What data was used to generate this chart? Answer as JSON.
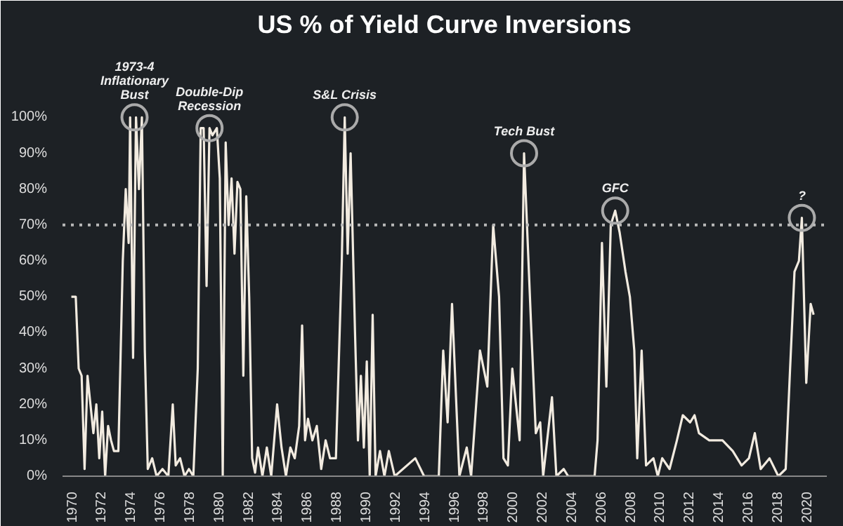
{
  "chart_data": {
    "type": "line",
    "title": "US % of Yield Curve Inversions",
    "color": "#f2ebe0",
    "x": [
      1970.0,
      1970.3,
      1970.5,
      1970.7,
      1970.9,
      1971.1,
      1971.3,
      1971.5,
      1971.7,
      1971.9,
      1972.1,
      1972.3,
      1972.5,
      1972.7,
      1972.9,
      1973.2,
      1973.5,
      1973.7,
      1973.9,
      1974.0,
      1974.2,
      1974.4,
      1974.6,
      1974.8,
      1975.0,
      1975.2,
      1975.5,
      1975.8,
      1976.2,
      1976.6,
      1976.9,
      1977.1,
      1977.4,
      1977.7,
      1978.0,
      1978.3,
      1978.6,
      1978.8,
      1979.0,
      1979.2,
      1979.4,
      1979.6,
      1979.9,
      1980.1,
      1980.3,
      1980.5,
      1980.7,
      1980.9,
      1981.1,
      1981.3,
      1981.5,
      1981.7,
      1981.9,
      1982.1,
      1982.3,
      1982.5,
      1982.7,
      1983.0,
      1983.3,
      1983.6,
      1984.0,
      1984.3,
      1984.6,
      1984.9,
      1985.2,
      1985.5,
      1985.7,
      1985.9,
      1986.1,
      1986.4,
      1986.7,
      1987.0,
      1987.3,
      1987.6,
      1988.0,
      1988.4,
      1988.6,
      1988.8,
      1989.0,
      1989.3,
      1989.5,
      1989.7,
      1989.9,
      1990.1,
      1990.3,
      1990.5,
      1990.7,
      1991.0,
      1991.3,
      1991.6,
      1992.0,
      1993.4,
      1994.0,
      1995.0,
      1995.3,
      1995.6,
      1995.9,
      1996.4,
      1996.9,
      1997.2,
      1997.8,
      1998.3,
      1998.7,
      1999.1,
      1999.4,
      1999.7,
      2000.0,
      2000.5,
      2000.8,
      2001.3,
      2001.6,
      2001.9,
      2002.1,
      2002.7,
      2003.0,
      2003.5,
      2003.8,
      2005.6,
      2005.8,
      2006.1,
      2006.4,
      2006.7,
      2007.0,
      2007.3,
      2007.7,
      2008.0,
      2008.3,
      2008.5,
      2008.8,
      2009.1,
      2009.6,
      2009.9,
      2010.2,
      2010.7,
      2011.2,
      2011.6,
      2012.1,
      2012.4,
      2012.7,
      2013.4,
      2014.3,
      2015.0,
      2015.6,
      2016.1,
      2016.5,
      2016.9,
      2017.5,
      2018.1,
      2018.6,
      2018.9,
      2019.2,
      2019.5,
      2019.7,
      2020.0,
      2020.3,
      2020.5
    ],
    "values": [
      50,
      50,
      30,
      28,
      2,
      28,
      20,
      12,
      20,
      5,
      18,
      0,
      14,
      10,
      7,
      7,
      60,
      80,
      65,
      100,
      33,
      100,
      80,
      100,
      35,
      2,
      5,
      0,
      2,
      0,
      20,
      3,
      5,
      0,
      2,
      0,
      30,
      97,
      97,
      53,
      97,
      95,
      97,
      83,
      0,
      93,
      70,
      83,
      62,
      82,
      80,
      28,
      78,
      50,
      5,
      1,
      8,
      0,
      8,
      0,
      20,
      8,
      0,
      8,
      5,
      14,
      42,
      10,
      16,
      10,
      14,
      2,
      10,
      5,
      5,
      60,
      100,
      62,
      90,
      40,
      10,
      28,
      8,
      32,
      0,
      45,
      0,
      7,
      0,
      7,
      0,
      5,
      0,
      0,
      35,
      15,
      48,
      0,
      8,
      0,
      35,
      25,
      70,
      50,
      5,
      3,
      30,
      10,
      90,
      40,
      12,
      15,
      0,
      22,
      0,
      2,
      0,
      0,
      10,
      65,
      25,
      70,
      74,
      68,
      57,
      50,
      35,
      5,
      35,
      3,
      5,
      0,
      5,
      2,
      10,
      17,
      15,
      17,
      12,
      10,
      10,
      7,
      3,
      5,
      12,
      2,
      5,
      0,
      2,
      30,
      57,
      60,
      72,
      26,
      48,
      45
    ],
    "xlim": [
      1969.4,
      2021.4
    ],
    "xticks": [
      1970,
      1972,
      1974,
      1976,
      1978,
      1980,
      1982,
      1984,
      1986,
      1988,
      1990,
      1992,
      1994,
      1996,
      1998,
      2000,
      2002,
      2004,
      2006,
      2008,
      2010,
      2012,
      2014,
      2016,
      2018,
      2020
    ],
    "ylim": [
      0,
      120
    ],
    "yticks": [
      {
        "value": 0,
        "label": "0%"
      },
      {
        "value": 10,
        "label": "10%"
      },
      {
        "value": 20,
        "label": "20%"
      },
      {
        "value": 30,
        "label": "30%"
      },
      {
        "value": 40,
        "label": "40%"
      },
      {
        "value": 50,
        "label": "50%"
      },
      {
        "value": 60,
        "label": "60%"
      },
      {
        "value": 70,
        "label": "70%"
      },
      {
        "value": 80,
        "label": "80%"
      },
      {
        "value": 90,
        "label": "90%"
      },
      {
        "value": 100,
        "label": "100%"
      }
    ],
    "ref_lines": [
      {
        "axis": "y",
        "value": 70,
        "color": "#b8b8b8",
        "line_style": "dotted"
      }
    ],
    "annotations": [
      {
        "text": "1973-4\nInflationary\nBust",
        "x": 1974.3,
        "y": 100
      },
      {
        "text": "Double-Dip\nRecession",
        "x": 1979.4,
        "y": 97
      },
      {
        "text": "S&L Crisis",
        "x": 1988.6,
        "y": 100
      },
      {
        "text": "Tech Bust",
        "x": 2000.8,
        "y": 90
      },
      {
        "text": "GFC",
        "x": 2007.0,
        "y": 74
      },
      {
        "text": "?",
        "x": 2019.7,
        "y": 72
      }
    ],
    "grid": false,
    "marker": "none",
    "line_style": "solid"
  }
}
